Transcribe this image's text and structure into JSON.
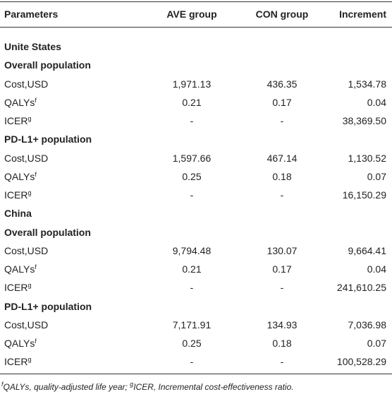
{
  "table": {
    "header": [
      "Parameters",
      "AVE group",
      "CON group",
      "Increment"
    ],
    "rows": [
      [
        "Unite States"
      ],
      [
        "Overall population"
      ],
      [
        "Cost,USD",
        "1,971.13",
        "436.35",
        "1,534.78"
      ],
      [
        {
          "text": "QALYs",
          "sup": "f"
        },
        "0.21",
        "0.17",
        "0.04"
      ],
      [
        {
          "text": "ICER",
          "sup": "g"
        },
        "-",
        "-",
        "38,369.50"
      ],
      [
        "PD-L1+ population"
      ],
      [
        "Cost,USD",
        "1,597.66",
        "467.14",
        "1,130.52"
      ],
      [
        {
          "text": "QALYs",
          "sup": "f"
        },
        "0.25",
        "0.18",
        "0.07"
      ],
      [
        {
          "text": "ICER",
          "sup": "g"
        },
        "-",
        "-",
        "16,150.29"
      ],
      [
        "China"
      ],
      [
        "Overall population"
      ],
      [
        "Cost,USD",
        "9,794.48",
        "130.07",
        "9,664.41"
      ],
      [
        {
          "text": "QALYs",
          "sup": "f"
        },
        "0.21",
        "0.17",
        "0.04"
      ],
      [
        {
          "text": "ICER",
          "sup": "g"
        },
        "-",
        "-",
        "241,610.25"
      ],
      [
        "PD-L1+ population"
      ],
      [
        "Cost,USD",
        "7,171.91",
        "134.93",
        "7,036.98"
      ],
      [
        {
          "text": "QALYs",
          "sup": "f"
        },
        "0.25",
        "0.18",
        "0.07"
      ],
      [
        {
          "text": "ICER",
          "sup": "g"
        },
        "-",
        "-",
        "100,528.29"
      ]
    ],
    "footnote": [
      {
        "sup": "f",
        "text": "QALYs, quality-adjusted life year; "
      },
      {
        "sup": "g",
        "text": "ICER, Incremental cost-effectiveness ratio."
      }
    ]
  }
}
